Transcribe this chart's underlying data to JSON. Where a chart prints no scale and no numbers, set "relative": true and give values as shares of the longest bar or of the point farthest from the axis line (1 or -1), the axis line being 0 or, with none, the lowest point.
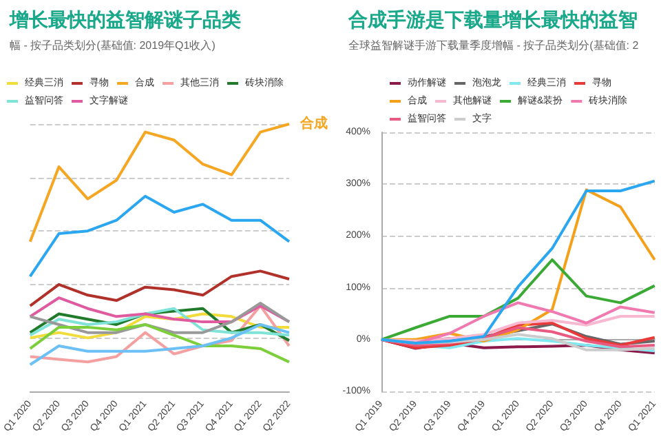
{
  "chart_data": [
    {
      "type": "line",
      "title": "增长最快的益智解谜子品类",
      "subtitle": "幅 - 按子品类划分(基础值: 2019年Q1收入)",
      "categories": [
        "Q1 2020",
        "Q2 2020",
        "Q3 2020",
        "Q4 2020",
        "Q1 2021",
        "Q2 2021",
        "Q3 2021",
        "Q4 2021",
        "Q1 2022",
        "Q2 2022"
      ],
      "relative": true,
      "grid": "y",
      "legend": "top",
      "marker": "none",
      "series": [
        {
          "name": "经典三消",
          "color": "#f2dc3c",
          "values": [
            0.2,
            0.22,
            0.2,
            0.22,
            0.28,
            0.27,
            0.29,
            0.28,
            0.24,
            0.24
          ]
        },
        {
          "name": "寻物",
          "color": "#b0302a",
          "values": [
            0.32,
            0.4,
            0.36,
            0.34,
            0.39,
            0.38,
            0.36,
            0.43,
            0.45,
            0.42
          ]
        },
        {
          "name": "合成",
          "color": "#f5a623",
          "values": [
            0.56,
            0.84,
            0.72,
            0.79,
            0.97,
            0.94,
            0.85,
            0.81,
            0.97,
            1
          ]
        },
        {
          "name": "其他三消",
          "color": "#f4a0a0",
          "values": [
            0.13,
            0.12,
            0.11,
            0.13,
            0.22,
            0.14,
            0.17,
            0.19,
            0.32,
            0.17
          ]
        },
        {
          "name": "砖块消除",
          "color": "#1f7a2a",
          "values": [
            0.22,
            0.29,
            0.27,
            0.25,
            0.29,
            0.3,
            0.31,
            0.22,
            0.25,
            0.19
          ]
        },
        {
          "name": "益智问答",
          "color": "#7fe3d8",
          "values": [
            0.21,
            0.27,
            0.25,
            0.26,
            0.29,
            0.31,
            0.23,
            0.22,
            0.22,
            0.21
          ]
        },
        {
          "name": "文字解谜",
          "color": "#e05aa0",
          "values": [
            0.28,
            0.35,
            0.31,
            0.28,
            0.29,
            0.27,
            0.26,
            0.26,
            0.32,
            0.26
          ]
        },
        {
          "color": "#2aa7f0",
          "values": [
            0.43,
            0.59,
            0.6,
            0.64,
            0.73,
            0.67,
            0.7,
            0.64,
            0.64,
            0.56
          ]
        },
        {
          "color": "#999999",
          "values": [
            0.28,
            0.25,
            0.22,
            0.22,
            0.25,
            0.22,
            0.22,
            0.26,
            0.33,
            0.26
          ]
        },
        {
          "color": "#7ccf3a",
          "values": [
            0.16,
            0.24,
            0.24,
            0.23,
            0.25,
            0.21,
            0.17,
            0.17,
            0.16,
            0.11
          ]
        },
        {
          "color": "#6cc0f5",
          "values": [
            0.1,
            0.17,
            0.15,
            0.15,
            0.15,
            0.16,
            0.17,
            0.2,
            0.25,
            0.22
          ]
        }
      ]
    },
    {
      "type": "line",
      "title": "合成手游是下载量增长最快的益智",
      "subtitle": "全球益智解谜手游下载量季度增幅 - 按子品类划分(基础值: 2",
      "categories": [
        "Q1 2019",
        "Q2 2019",
        "Q3 2019",
        "Q4 2019",
        "Q1 2020",
        "Q2 2020",
        "Q3 2020",
        "Q4 2020",
        "Q1 2021"
      ],
      "ylim": [
        -100,
        400
      ],
      "yticks": [
        {
          "value": -100,
          "label": "-100%"
        },
        {
          "value": 0,
          "label": "0%"
        },
        {
          "value": 100,
          "label": "100%"
        },
        {
          "value": 200,
          "label": "200%"
        },
        {
          "value": 300,
          "label": "300%"
        },
        {
          "value": 400,
          "label": "400%"
        }
      ],
      "grid": "y",
      "legend": "top",
      "marker": "none",
      "series": [
        {
          "name": "动作解谜",
          "color": "#8b1a4a",
          "values": [
            0,
            -17,
            -7,
            -16,
            -14,
            -13,
            -11,
            -20,
            -26
          ]
        },
        {
          "name": "泡泡龙",
          "color": "#666666",
          "values": [
            0,
            -3,
            2,
            6,
            17,
            30,
            6,
            -9,
            -3
          ]
        },
        {
          "name": "经典三消",
          "color": "#7fe8f0",
          "values": [
            0,
            -11,
            -16,
            -3,
            2,
            -3,
            -11,
            -16,
            -22
          ]
        },
        {
          "name": "寻物",
          "color": "#e83a3a",
          "values": [
            0,
            -16,
            -11,
            2,
            28,
            32,
            2,
            -11,
            4
          ]
        },
        {
          "name": "合成",
          "color": "#f5a01a",
          "values": [
            0,
            0,
            12,
            -3,
            19,
            58,
            289,
            256,
            154
          ]
        },
        {
          "name": "其他解谜",
          "color": "#f7b8d0",
          "values": [
            0,
            -3,
            2,
            10,
            32,
            37,
            28,
            45,
            45
          ]
        },
        {
          "name": "解谜&装扮",
          "color": "#3aaa35",
          "values": [
            0,
            23,
            45,
            45,
            80,
            154,
            84,
            71,
            104
          ]
        },
        {
          "name": "砖块消除",
          "color": "#f07ab0",
          "values": [
            0,
            -7,
            12,
            45,
            71,
            54,
            32,
            63,
            52
          ]
        },
        {
          "name": "益智问答",
          "color": "#e85a80",
          "values": [
            0,
            -11,
            -7,
            3,
            23,
            15,
            -3,
            -14,
            -11
          ]
        },
        {
          "name": "文字",
          "color": "#cccccc",
          "values": [
            0,
            -7,
            -5,
            0,
            10,
            2,
            -20,
            -20,
            -17
          ]
        },
        {
          "color": "#2aa7f0",
          "values": [
            0,
            -7,
            -3,
            6,
            102,
            176,
            287,
            287,
            306
          ]
        }
      ]
    }
  ]
}
